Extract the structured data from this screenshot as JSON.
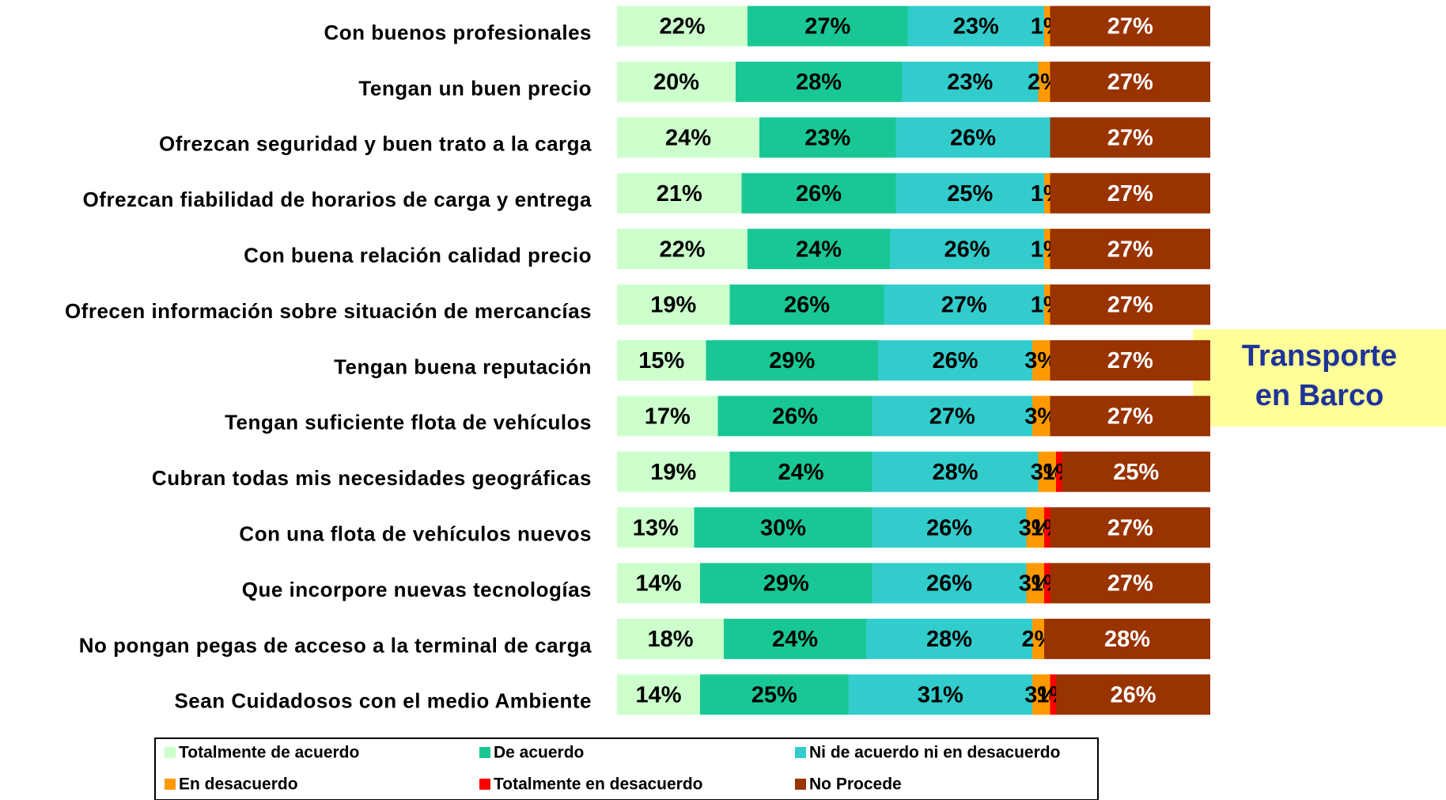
{
  "chart_data": {
    "type": "stacked-bar-horizontal",
    "categories": [
      "Con buenos profesionales",
      "Tengan un buen precio",
      "Ofrezcan seguridad y buen trato a la carga",
      "Ofrezcan fiabilidad de horarios de carga y entrega",
      "Con buena relación calidad precio",
      "Ofrecen información sobre situación de mercancías",
      "Tengan buena reputación",
      "Tengan suficiente flota de vehículos",
      "Cubran todas mis necesidades geográficas",
      "Con una flota de vehículos nuevos",
      "Que incorpore nuevas tecnologías",
      "No pongan pegas de acceso a la terminal de carga",
      "Sean Cuidadosos con el medio Ambiente"
    ],
    "xlim": [
      0,
      100
    ],
    "series": [
      {
        "name": "Totalmente de acuerdo",
        "color": "#ccffcc",
        "values": [
          22,
          20,
          24,
          21,
          22,
          19,
          15,
          17,
          19,
          13,
          14,
          18,
          14
        ],
        "value_labels": [
          "22%",
          "20%",
          "24%",
          "21%",
          "22%",
          "19%",
          "15%",
          "17%",
          "19%",
          "13%",
          "14%",
          "18%",
          "14%"
        ]
      },
      {
        "name": "De acuerdo",
        "color": "#19c795",
        "values": [
          27,
          28,
          23,
          26,
          24,
          26,
          29,
          26,
          24,
          30,
          29,
          24,
          25
        ],
        "value_labels": [
          "27%",
          "28%",
          "23%",
          "26%",
          "24%",
          "26%",
          "29%",
          "26%",
          "24%",
          "30%",
          "29%",
          "24%",
          "25%"
        ]
      },
      {
        "name": "Ni de acuerdo ni en desacuerdo",
        "color": "#33cccc",
        "values": [
          23,
          23,
          26,
          25,
          26,
          27,
          26,
          27,
          28,
          26,
          26,
          28,
          31
        ],
        "value_labels": [
          "23%",
          "23%",
          "26%",
          "25%",
          "26%",
          "27%",
          "26%",
          "27%",
          "28%",
          "26%",
          "26%",
          "28%",
          "31%"
        ]
      },
      {
        "name": "En desacuerdo",
        "color": "#ff9900",
        "values": [
          1,
          2,
          null,
          1,
          1,
          1,
          3,
          3,
          3,
          3,
          3,
          2,
          3
        ],
        "value_labels": [
          "1%",
          "2%",
          null,
          "1%",
          "1%",
          "1%",
          "3%",
          "3%",
          "3%",
          "3%",
          "3%",
          "2%",
          "3%"
        ]
      },
      {
        "name": "Totalmente en desacuerdo",
        "color": "#ff0000",
        "values": [
          null,
          null,
          null,
          null,
          null,
          null,
          null,
          null,
          1,
          1,
          1,
          null,
          1
        ],
        "value_labels": [
          null,
          null,
          null,
          null,
          null,
          null,
          null,
          null,
          "1%",
          "1%",
          "1%",
          null,
          "1%"
        ]
      },
      {
        "name": "No Procede",
        "color": "#993300",
        "values": [
          27,
          27,
          27,
          27,
          27,
          27,
          27,
          27,
          25,
          27,
          27,
          28,
          26
        ],
        "value_labels": [
          "27%",
          "27%",
          "27%",
          "27%",
          "27%",
          "27%",
          "27%",
          "27%",
          "25%",
          "27%",
          "27%",
          "28%",
          "26%"
        ]
      }
    ],
    "annotation": "Transporte en Barco"
  }
}
